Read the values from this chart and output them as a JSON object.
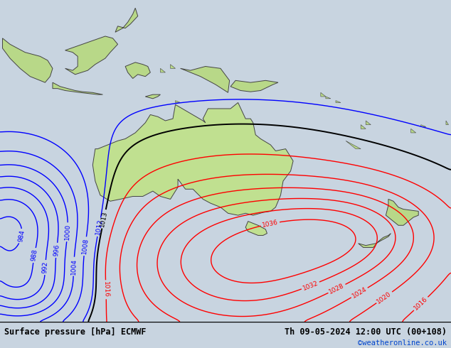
{
  "title_left": "Surface pressure [hPa] ECMWF",
  "title_right": "Th 09-05-2024 12:00 UTC (00+108)",
  "credit": "©weatheronline.co.uk",
  "bg_color": "#c8d4e0",
  "land_color": "#b8d888",
  "australia_color": "#c0e090",
  "xlim": [
    95,
    185
  ],
  "ylim": [
    -65,
    15
  ],
  "figsize": [
    6.34,
    4.9
  ],
  "dpi": 100
}
